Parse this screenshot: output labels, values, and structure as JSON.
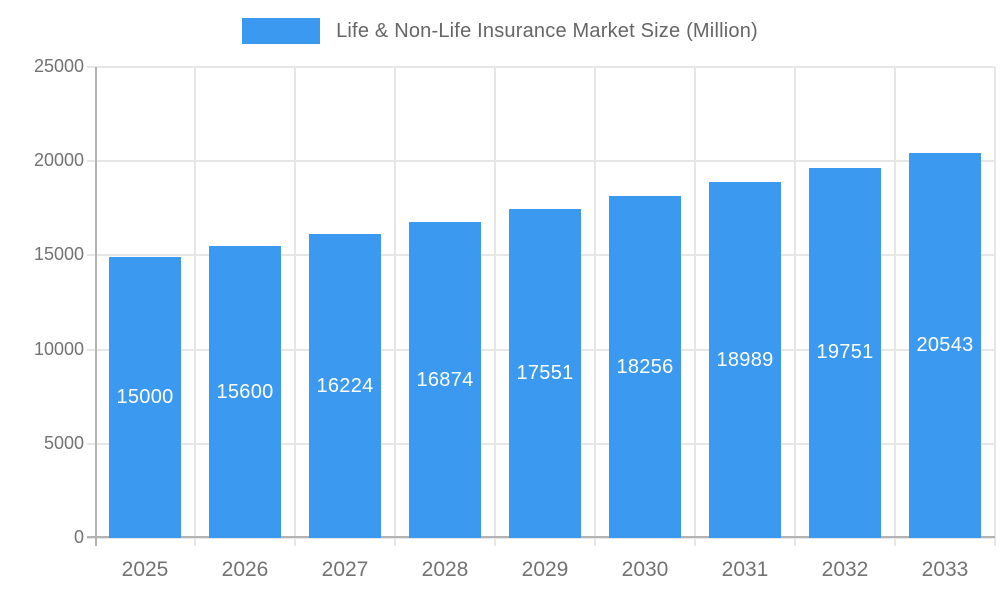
{
  "legend": {
    "label": "Life & Non-Life Insurance Market Size (Million)"
  },
  "colors": {
    "bar": "#3b9af0",
    "grid": "#e6e6e6",
    "axis": "#b3b3b3",
    "tick_text": "#737373",
    "legend_text": "#666666",
    "bar_label_text": "#ffffff"
  },
  "chart_data": {
    "type": "bar",
    "title": "Life & Non-Life Insurance Market Size (Million)",
    "categories": [
      "2025",
      "2026",
      "2027",
      "2028",
      "2029",
      "2030",
      "2031",
      "2032",
      "2033"
    ],
    "values": [
      15000,
      15600,
      16224,
      16874,
      17551,
      18256,
      18989,
      19751,
      20543
    ],
    "xlabel": "",
    "ylabel": "",
    "ylim": [
      0,
      25000
    ],
    "yticks": [
      0,
      5000,
      10000,
      15000,
      20000,
      25000
    ],
    "grid": true,
    "legend_position": "top",
    "bar_labels": "inside-center-white"
  }
}
